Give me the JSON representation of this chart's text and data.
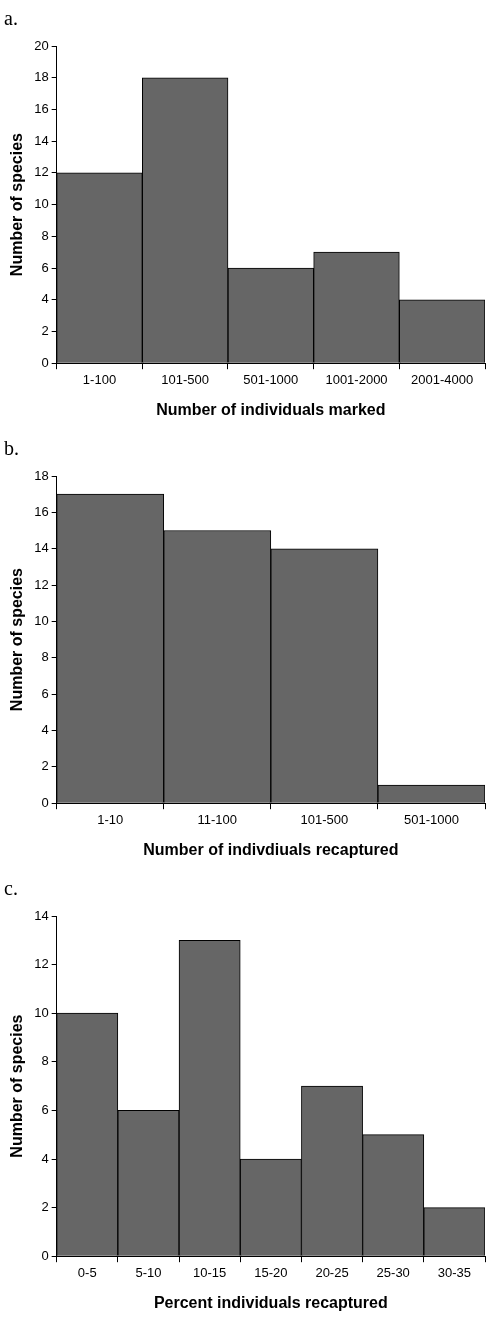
{
  "chart_data": [
    {
      "type": "bar",
      "title": "a.",
      "xlabel": "Number of individuals marked",
      "ylabel": "Number of species",
      "categories": [
        "1-100",
        "101-500",
        "501-1000",
        "1001-2000",
        "2001-4000"
      ],
      "values": [
        12,
        18,
        6,
        7,
        4
      ],
      "color": "#666666",
      "ylim": [
        0,
        20
      ],
      "yticks": [
        0,
        2,
        4,
        6,
        8,
        10,
        12,
        14,
        16,
        18,
        20
      ]
    },
    {
      "type": "bar",
      "title": "b.",
      "xlabel": "Number of indivdiuals recaptured",
      "ylabel": "Number of species",
      "categories": [
        "1-10",
        "11-100",
        "101-500",
        "501-1000"
      ],
      "values": [
        17,
        15,
        14,
        1
      ],
      "color": "#666666",
      "ylim": [
        0,
        18
      ],
      "yticks": [
        0,
        2,
        4,
        6,
        8,
        10,
        12,
        14,
        16,
        18
      ]
    },
    {
      "type": "bar",
      "title": "c.",
      "xlabel": "Percent individuals recaptured",
      "ylabel": "Number of species",
      "categories": [
        "0-5",
        "5-10",
        "10-15",
        "15-20",
        "20-25",
        "25-30",
        "30-35"
      ],
      "values": [
        10,
        6,
        13,
        4,
        7,
        5,
        2
      ],
      "color": "#666666",
      "ylim": [
        0,
        14
      ],
      "yticks": [
        0,
        2,
        4,
        6,
        8,
        10,
        12,
        14
      ]
    }
  ]
}
